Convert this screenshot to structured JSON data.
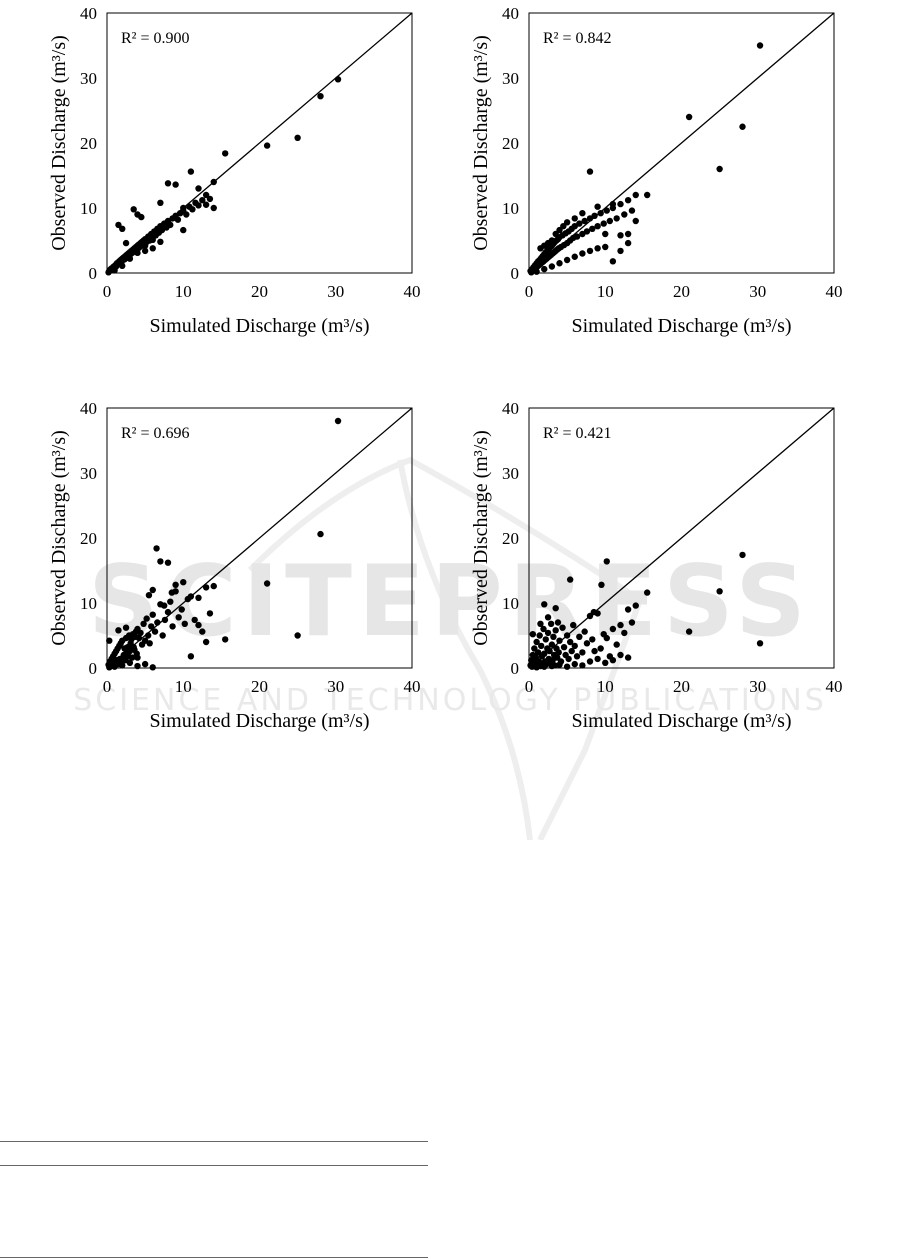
{
  "watermark": {
    "line1": "SCITEPRESS",
    "line2": "SCIENCE AND TECHNOLOGY PUBLICATIONS",
    "color": "#e3e3e3"
  },
  "chart_data": [
    {
      "type": "scatter",
      "xlabel": "Simulated Discharge (m³/s)",
      "ylabel": "Observed Discharge (m³/s)",
      "xlim": [
        0,
        40
      ],
      "ylim": [
        0,
        40
      ],
      "xticks": [
        "0",
        "10",
        "20",
        "30",
        "40"
      ],
      "yticks": [
        "0",
        "10",
        "20",
        "30",
        "40"
      ],
      "annotation": "R² = 0.900",
      "reference_line": "1:1",
      "grid": false,
      "series": [
        {
          "x": [
            0.2,
            0.3,
            0.4,
            0.5,
            0.6,
            0.7,
            0.8,
            0.9,
            1.0,
            1.1,
            1.2,
            1.3,
            1.4,
            1.5,
            1.6,
            1.7,
            1.8,
            1.9,
            2.0,
            2.1,
            2.2,
            2.3,
            2.4,
            2.5,
            2.6,
            2.7,
            2.8,
            2.9,
            3.0,
            3.1,
            3.2,
            3.3,
            3.4,
            3.5,
            3.6,
            3.7,
            3.8,
            3.9,
            4.0,
            4.1,
            4.2,
            4.3,
            4.4,
            4.5,
            4.6,
            4.7,
            4.8,
            4.9,
            5.0,
            5.2,
            5.4,
            5.6,
            5.8,
            6.0,
            6.2,
            6.4,
            6.6,
            6.8,
            7.0,
            7.2,
            7.5,
            7.8,
            8.0,
            8.3,
            8.6,
            9.0,
            9.3,
            9.6,
            10.0,
            10.4,
            10.8,
            11.2,
            11.6,
            12.0,
            12.5,
            13.0,
            13.5,
            14.0,
            1.5,
            2.0,
            2.5,
            3.5,
            4.0,
            4.5,
            5.0,
            6.0,
            7.0,
            8.0,
            9.0,
            10.0,
            11.0,
            12.0,
            13.0,
            14.0,
            1.0,
            2.0,
            3.0,
            4.0,
            5.0,
            6.0,
            7.0,
            8.0,
            9.0,
            10.0,
            15.5,
            21.0,
            25.0,
            28.0,
            30.3
          ],
          "y": [
            0.1,
            0.3,
            0.5,
            0.4,
            0.7,
            0.6,
            0.9,
            1.0,
            0.8,
            1.2,
            1.0,
            1.5,
            1.3,
            1.4,
            1.8,
            1.6,
            2.0,
            1.7,
            2.2,
            2.0,
            2.4,
            2.1,
            2.6,
            2.3,
            2.8,
            2.5,
            3.0,
            2.7,
            3.2,
            2.9,
            3.4,
            3.1,
            3.6,
            3.3,
            3.8,
            3.5,
            4.0,
            3.6,
            4.2,
            3.8,
            4.4,
            4.0,
            4.6,
            4.2,
            4.8,
            4.4,
            5.0,
            4.5,
            5.2,
            4.8,
            5.6,
            5.0,
            6.0,
            5.4,
            6.4,
            5.8,
            6.8,
            6.2,
            7.2,
            6.6,
            7.6,
            7.0,
            8.0,
            7.4,
            8.4,
            8.8,
            8.2,
            9.2,
            9.6,
            9.0,
            10.2,
            9.8,
            10.8,
            10.4,
            11.2,
            12.0,
            11.4,
            14.0,
            7.4,
            6.8,
            4.6,
            9.8,
            9.0,
            8.6,
            3.4,
            3.8,
            10.8,
            13.8,
            13.6,
            10.0,
            15.6,
            13.0,
            10.5,
            10.0,
            0.4,
            1.1,
            2.2,
            3.1,
            4.2,
            5.1,
            4.8,
            7.9,
            8.5,
            6.6,
            18.4,
            19.6,
            20.8,
            27.2,
            29.8
          ]
        }
      ]
    },
    {
      "type": "scatter",
      "xlabel": "Simulated Discharge (m³/s)",
      "ylabel": "Observed Discharge (m³/s)",
      "xlim": [
        0,
        40
      ],
      "ylim": [
        0,
        40
      ],
      "xticks": [
        "0",
        "10",
        "20",
        "30",
        "40"
      ],
      "yticks": [
        "0",
        "10",
        "20",
        "30",
        "40"
      ],
      "annotation": "R² = 0.842",
      "reference_line": "1:1",
      "grid": false,
      "series": [
        {
          "x": [
            0.2,
            0.3,
            0.4,
            0.5,
            0.6,
            0.7,
            0.8,
            0.9,
            1.0,
            1.1,
            1.2,
            1.3,
            1.4,
            1.5,
            1.6,
            1.7,
            1.8,
            1.9,
            2.0,
            2.1,
            2.2,
            2.3,
            2.4,
            2.5,
            2.6,
            2.7,
            2.8,
            2.9,
            3.0,
            3.1,
            3.2,
            3.3,
            3.4,
            3.5,
            3.6,
            3.7,
            3.8,
            3.9,
            4.0,
            4.2,
            4.4,
            4.6,
            4.8,
            5.0,
            5.2,
            5.4,
            5.6,
            5.8,
            6.0,
            6.3,
            6.6,
            7.0,
            7.3,
            7.6,
            8.0,
            8.3,
            8.6,
            9.0,
            9.4,
            9.8,
            10.2,
            10.6,
            11.0,
            11.5,
            12.0,
            12.5,
            13.0,
            13.5,
            14.0,
            1.5,
            2.0,
            2.5,
            3.0,
            3.5,
            4.0,
            4.5,
            5.0,
            6.0,
            7.0,
            8.0,
            9.0,
            10.0,
            11.0,
            12.0,
            13.0,
            14.0,
            15.5,
            1.0,
            2.0,
            3.0,
            4.0,
            5.0,
            6.0,
            7.0,
            8.0,
            9.0,
            10.0,
            11.0,
            12.0,
            13.0,
            21.0,
            25.0,
            28.0,
            30.3
          ],
          "y": [
            0.3,
            0.1,
            0.6,
            0.4,
            0.9,
            0.5,
            1.2,
            0.8,
            1.5,
            1.0,
            1.8,
            1.2,
            2.0,
            1.4,
            2.3,
            1.6,
            2.6,
            1.8,
            2.9,
            2.0,
            3.2,
            2.2,
            3.4,
            2.4,
            3.7,
            2.6,
            4.0,
            2.8,
            4.2,
            3.0,
            4.5,
            3.2,
            4.8,
            3.4,
            5.0,
            3.6,
            5.2,
            3.8,
            5.5,
            4.0,
            5.8,
            4.3,
            6.1,
            4.6,
            6.4,
            5.0,
            6.8,
            5.4,
            7.2,
            5.6,
            7.6,
            6.0,
            8.0,
            6.4,
            8.4,
            6.8,
            8.8,
            7.2,
            9.2,
            7.6,
            9.6,
            8.0,
            10.0,
            8.4,
            10.6,
            9.0,
            11.2,
            9.6,
            12.0,
            3.8,
            4.2,
            4.6,
            5.0,
            6.0,
            6.6,
            7.2,
            7.8,
            8.4,
            9.2,
            15.6,
            10.2,
            6.0,
            10.6,
            5.8,
            6.0,
            8.0,
            12.0,
            0.2,
            0.6,
            1.0,
            1.5,
            2.0,
            2.5,
            3.0,
            3.4,
            3.8,
            4.0,
            1.8,
            3.4,
            4.6,
            24.0,
            16.0,
            22.5,
            35.0
          ]
        }
      ]
    },
    {
      "type": "scatter",
      "xlabel": "Simulated Discharge (m³/s)",
      "ylabel": "Observed Discharge (m³/s)",
      "xlim": [
        0,
        40
      ],
      "ylim": [
        0,
        40
      ],
      "xticks": [
        "0",
        "10",
        "20",
        "30",
        "40"
      ],
      "yticks": [
        "0",
        "10",
        "20",
        "30",
        "40"
      ],
      "annotation": "R² = 0.696",
      "reference_line": "1:1",
      "grid": false,
      "series": [
        {
          "x": [
            0.2,
            0.3,
            0.4,
            0.5,
            0.6,
            0.7,
            0.8,
            0.9,
            1.0,
            1.1,
            1.2,
            1.3,
            1.4,
            1.5,
            1.6,
            1.7,
            1.8,
            1.9,
            2.0,
            2.1,
            2.2,
            2.3,
            2.4,
            2.5,
            2.6,
            2.7,
            2.8,
            2.9,
            3.0,
            3.1,
            3.2,
            3.3,
            3.4,
            3.5,
            3.6,
            3.7,
            3.8,
            3.9,
            4.0,
            4.2,
            4.4,
            4.6,
            4.8,
            5.0,
            5.2,
            5.4,
            5.6,
            5.8,
            6.0,
            6.3,
            6.6,
            7.0,
            7.3,
            7.6,
            8.0,
            8.3,
            8.6,
            9.0,
            9.4,
            9.8,
            10.2,
            10.6,
            11.0,
            11.5,
            12.0,
            12.5,
            13.0,
            13.5,
            14.0,
            15.5,
            1.0,
            2.0,
            3.0,
            4.0,
            5.0,
            6.0,
            6.5,
            7.0,
            7.5,
            8.0,
            9.0,
            10.0,
            11.0,
            12.0,
            13.0,
            5.5,
            6.0,
            8.5,
            4.0,
            3.0,
            21.0,
            25.0,
            28.0,
            30.3,
            0.3,
            1.5,
            2.5
          ],
          "y": [
            0.5,
            0.1,
            1.0,
            0.3,
            1.4,
            0.6,
            1.8,
            0.4,
            2.2,
            0.8,
            2.6,
            1.2,
            3.0,
            0.6,
            3.4,
            1.4,
            3.8,
            1.0,
            4.2,
            1.6,
            2.0,
            3.0,
            1.2,
            4.6,
            2.4,
            3.2,
            1.8,
            5.0,
            2.6,
            3.8,
            4.4,
            1.6,
            5.2,
            3.2,
            2.8,
            4.8,
            5.6,
            2.2,
            6.0,
            4.6,
            5.4,
            3.6,
            6.8,
            4.2,
            7.6,
            5.0,
            3.8,
            6.4,
            8.2,
            5.6,
            7.0,
            9.8,
            5.0,
            7.4,
            8.6,
            10.2,
            6.4,
            11.8,
            7.8,
            9.0,
            6.8,
            10.6,
            11.0,
            7.4,
            10.8,
            5.6,
            12.4,
            8.4,
            12.6,
            4.4,
            0.2,
            0.4,
            0.8,
            0.3,
            0.6,
            0.1,
            18.4,
            16.4,
            9.6,
            16.2,
            12.8,
            13.2,
            1.8,
            6.6,
            4.0,
            11.2,
            12.0,
            11.6,
            1.6,
            3.4,
            13.0,
            5.0,
            20.6,
            38.0,
            4.2,
            5.8,
            6.2
          ]
        }
      ]
    },
    {
      "type": "scatter",
      "xlabel": "Simulated Discharge (m³/s)",
      "ylabel": "Observed Discharge (m³/s)",
      "xlim": [
        0,
        40
      ],
      "ylim": [
        0,
        40
      ],
      "xticks": [
        "0",
        "10",
        "20",
        "30",
        "40"
      ],
      "yticks": [
        "0",
        "10",
        "20",
        "30",
        "40"
      ],
      "annotation": "R² = 0.421",
      "reference_line": "1:1",
      "grid": false,
      "series": [
        {
          "x": [
            0.2,
            0.3,
            0.4,
            0.5,
            0.6,
            0.7,
            0.8,
            0.9,
            1.0,
            1.1,
            1.2,
            1.3,
            1.4,
            1.5,
            1.6,
            1.7,
            1.8,
            1.9,
            2.0,
            2.1,
            2.2,
            2.3,
            2.4,
            2.5,
            2.6,
            2.7,
            2.8,
            2.9,
            3.0,
            3.1,
            3.2,
            3.3,
            3.4,
            3.5,
            3.6,
            3.7,
            3.8,
            3.9,
            4.0,
            4.2,
            4.4,
            4.6,
            4.8,
            5.0,
            5.2,
            5.4,
            5.6,
            5.8,
            6.0,
            6.3,
            6.6,
            7.0,
            7.3,
            7.6,
            8.0,
            8.3,
            8.6,
            9.0,
            9.4,
            9.8,
            10.2,
            10.6,
            11.0,
            11.5,
            12.0,
            12.5,
            13.0,
            13.5,
            14.0,
            15.5,
            1.0,
            2.0,
            3.0,
            4.0,
            5.0,
            6.0,
            7.0,
            8.0,
            9.0,
            10.0,
            11.0,
            12.0,
            13.0,
            5.4,
            9.5,
            10.2,
            8.5,
            2.0,
            21.0,
            25.0,
            28.0,
            30.3,
            0.5,
            1.5,
            2.5,
            3.5
          ],
          "y": [
            0.4,
            1.2,
            0.2,
            2.0,
            0.8,
            3.0,
            0.4,
            1.6,
            4.0,
            0.6,
            2.4,
            1.0,
            5.0,
            0.3,
            3.4,
            1.8,
            0.5,
            6.0,
            2.2,
            1.0,
            4.4,
            0.6,
            3.0,
            5.4,
            1.4,
            2.6,
            0.8,
            6.8,
            3.6,
            1.2,
            4.8,
            2.0,
            0.4,
            5.8,
            3.0,
            1.6,
            7.0,
            2.4,
            4.2,
            1.0,
            6.2,
            3.2,
            2.0,
            5.0,
            1.4,
            4.0,
            2.6,
            6.6,
            3.4,
            1.8,
            4.8,
            2.4,
            5.6,
            3.8,
            8.0,
            4.4,
            2.6,
            8.4,
            3.0,
            5.2,
            4.6,
            1.8,
            6.0,
            3.6,
            6.6,
            5.4,
            9.0,
            7.0,
            9.6,
            11.6,
            0.1,
            0.2,
            0.3,
            0.5,
            0.2,
            0.6,
            0.4,
            1.0,
            1.4,
            0.8,
            1.2,
            2.0,
            1.6,
            13.6,
            12.8,
            16.4,
            8.6,
            9.8,
            5.6,
            11.8,
            17.4,
            3.8,
            5.2,
            6.8,
            7.8,
            9.2
          ]
        }
      ]
    }
  ]
}
